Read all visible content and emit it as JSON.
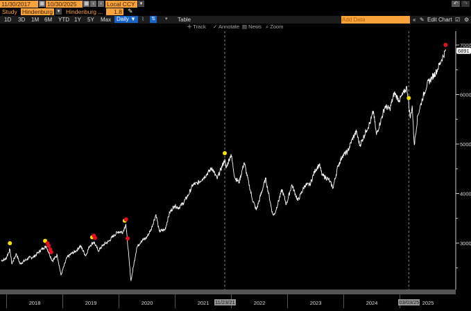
{
  "toolbar": {
    "start_date": "11/30/2017",
    "end_date": "10/30/2025",
    "currency": "Local CCY",
    "study_label": "Study",
    "study_value": "Hindenburg",
    "study_param_label": "Hindenburg ...",
    "study_param_value": "1.8",
    "periods": [
      "1D",
      "3D",
      "1M",
      "6M",
      "YTD",
      "1Y",
      "5Y",
      "Max"
    ],
    "frequency": "Daily ▼",
    "table_label": "Table",
    "add_data_placeholder": "Add Data",
    "edit_chart_label": "Edit Chart",
    "tools": [
      "Track",
      "Annotate",
      "News",
      "Zoom"
    ]
  },
  "chart_data": {
    "type": "line",
    "title": "",
    "xlabel": "",
    "ylabel": "",
    "ylim": [
      2150,
      7200
    ],
    "y_ticks": [
      3000,
      4000,
      5000,
      6000,
      7000
    ],
    "x_ticks": [
      "2018",
      "2019",
      "2020",
      "2021",
      "2022",
      "2023",
      "2024",
      "2025"
    ],
    "last_value_label": "6891",
    "grid": false,
    "colors": {
      "line": "#ffffff",
      "signal_yellow": "#f5e000",
      "signal_red": "#e01020",
      "background": "#000000"
    },
    "vertical_markers": [
      {
        "date": "2021-11-23",
        "label": "11/23/21"
      },
      {
        "date": "2025-03-03",
        "label": "03/03/25"
      }
    ],
    "series": [
      {
        "points": [
          [
            "2017-11-30",
            2648
          ],
          [
            "2017-12-29",
            2674
          ],
          [
            "2018-01-26",
            2873
          ],
          [
            "2018-02-08",
            2581
          ],
          [
            "2018-03-09",
            2786
          ],
          [
            "2018-04-02",
            2582
          ],
          [
            "2018-05-31",
            2705
          ],
          [
            "2018-06-29",
            2718
          ],
          [
            "2018-07-31",
            2816
          ],
          [
            "2018-08-31",
            2902
          ],
          [
            "2018-09-20",
            2931
          ],
          [
            "2018-10-29",
            2641
          ],
          [
            "2018-11-30",
            2760
          ],
          [
            "2018-12-24",
            2351
          ],
          [
            "2019-01-31",
            2704
          ],
          [
            "2019-02-28",
            2784
          ],
          [
            "2019-03-29",
            2834
          ],
          [
            "2019-04-30",
            2946
          ],
          [
            "2019-06-03",
            2744
          ],
          [
            "2019-06-28",
            2942
          ],
          [
            "2019-07-26",
            3025
          ],
          [
            "2019-08-23",
            2847
          ],
          [
            "2019-09-30",
            2977
          ],
          [
            "2019-10-31",
            3038
          ],
          [
            "2019-11-29",
            3141
          ],
          [
            "2019-12-31",
            3231
          ],
          [
            "2020-01-31",
            3226
          ],
          [
            "2020-02-19",
            3386
          ],
          [
            "2020-03-23",
            2237
          ],
          [
            "2020-04-30",
            2912
          ],
          [
            "2020-05-29",
            3044
          ],
          [
            "2020-06-30",
            3100
          ],
          [
            "2020-07-31",
            3271
          ],
          [
            "2020-09-02",
            3580
          ],
          [
            "2020-09-23",
            3237
          ],
          [
            "2020-10-30",
            3270
          ],
          [
            "2020-11-30",
            3622
          ],
          [
            "2020-12-31",
            3756
          ],
          [
            "2021-01-29",
            3714
          ],
          [
            "2021-02-26",
            3811
          ],
          [
            "2021-03-31",
            3973
          ],
          [
            "2021-04-30",
            4181
          ],
          [
            "2021-05-28",
            4204
          ],
          [
            "2021-06-30",
            4298
          ],
          [
            "2021-07-30",
            4395
          ],
          [
            "2021-08-31",
            4523
          ],
          [
            "2021-10-04",
            4300
          ],
          [
            "2021-11-23",
            4690
          ],
          [
            "2021-12-01",
            4513
          ],
          [
            "2022-01-03",
            4797
          ],
          [
            "2022-01-27",
            4326
          ],
          [
            "2022-02-24",
            4225
          ],
          [
            "2022-03-29",
            4631
          ],
          [
            "2022-05-20",
            3901
          ],
          [
            "2022-06-16",
            3667
          ],
          [
            "2022-08-16",
            4305
          ],
          [
            "2022-09-30",
            3586
          ],
          [
            "2022-10-12",
            3577
          ],
          [
            "2022-11-30",
            4080
          ],
          [
            "2022-12-28",
            3783
          ],
          [
            "2023-02-02",
            4179
          ],
          [
            "2023-03-13",
            3855
          ],
          [
            "2023-04-28",
            4169
          ],
          [
            "2023-05-31",
            4180
          ],
          [
            "2023-06-30",
            4450
          ],
          [
            "2023-07-31",
            4589
          ],
          [
            "2023-08-18",
            4370
          ],
          [
            "2023-09-29",
            4288
          ],
          [
            "2023-10-27",
            4117
          ],
          [
            "2023-11-30",
            4568
          ],
          [
            "2023-12-29",
            4770
          ],
          [
            "2024-01-31",
            4846
          ],
          [
            "2024-02-29",
            5096
          ],
          [
            "2024-03-28",
            5254
          ],
          [
            "2024-04-19",
            4967
          ],
          [
            "2024-05-31",
            5278
          ],
          [
            "2024-06-28",
            5460
          ],
          [
            "2024-07-16",
            5667
          ],
          [
            "2024-08-05",
            5186
          ],
          [
            "2024-09-30",
            5762
          ],
          [
            "2024-10-31",
            5705
          ],
          [
            "2024-11-29",
            6032
          ],
          [
            "2024-12-31",
            5882
          ],
          [
            "2025-01-31",
            6041
          ],
          [
            "2025-02-19",
            6144
          ],
          [
            "2025-03-13",
            5522
          ],
          [
            "2025-03-25",
            5776
          ],
          [
            "2025-04-08",
            4982
          ],
          [
            "2025-04-30",
            5569
          ],
          [
            "2025-05-30",
            5912
          ],
          [
            "2025-06-30",
            6205
          ],
          [
            "2025-07-31",
            6339
          ],
          [
            "2025-08-29",
            6460
          ],
          [
            "2025-09-30",
            6688
          ],
          [
            "2025-10-30",
            6891
          ]
        ]
      }
    ],
    "signals": [
      {
        "date": "2018-01-26",
        "color": "yellow"
      },
      {
        "date": "2018-09-12",
        "color": "yellow"
      },
      {
        "date": "2018-09-28",
        "color": "red"
      },
      {
        "date": "2018-10-05",
        "color": "red"
      },
      {
        "date": "2018-10-15",
        "color": "red"
      },
      {
        "date": "2018-10-22",
        "color": "red"
      },
      {
        "date": "2019-07-15",
        "color": "yellow"
      },
      {
        "date": "2019-07-26",
        "color": "red"
      },
      {
        "date": "2019-08-02",
        "color": "red"
      },
      {
        "date": "2020-02-12",
        "color": "yellow"
      },
      {
        "date": "2020-02-20",
        "color": "red"
      },
      {
        "date": "2020-03-02",
        "color": "red"
      },
      {
        "date": "2021-11-23",
        "color": "yellow"
      },
      {
        "date": "2025-03-03",
        "color": "yellow"
      },
      {
        "date": "2025-10-28",
        "color": "red"
      }
    ]
  }
}
